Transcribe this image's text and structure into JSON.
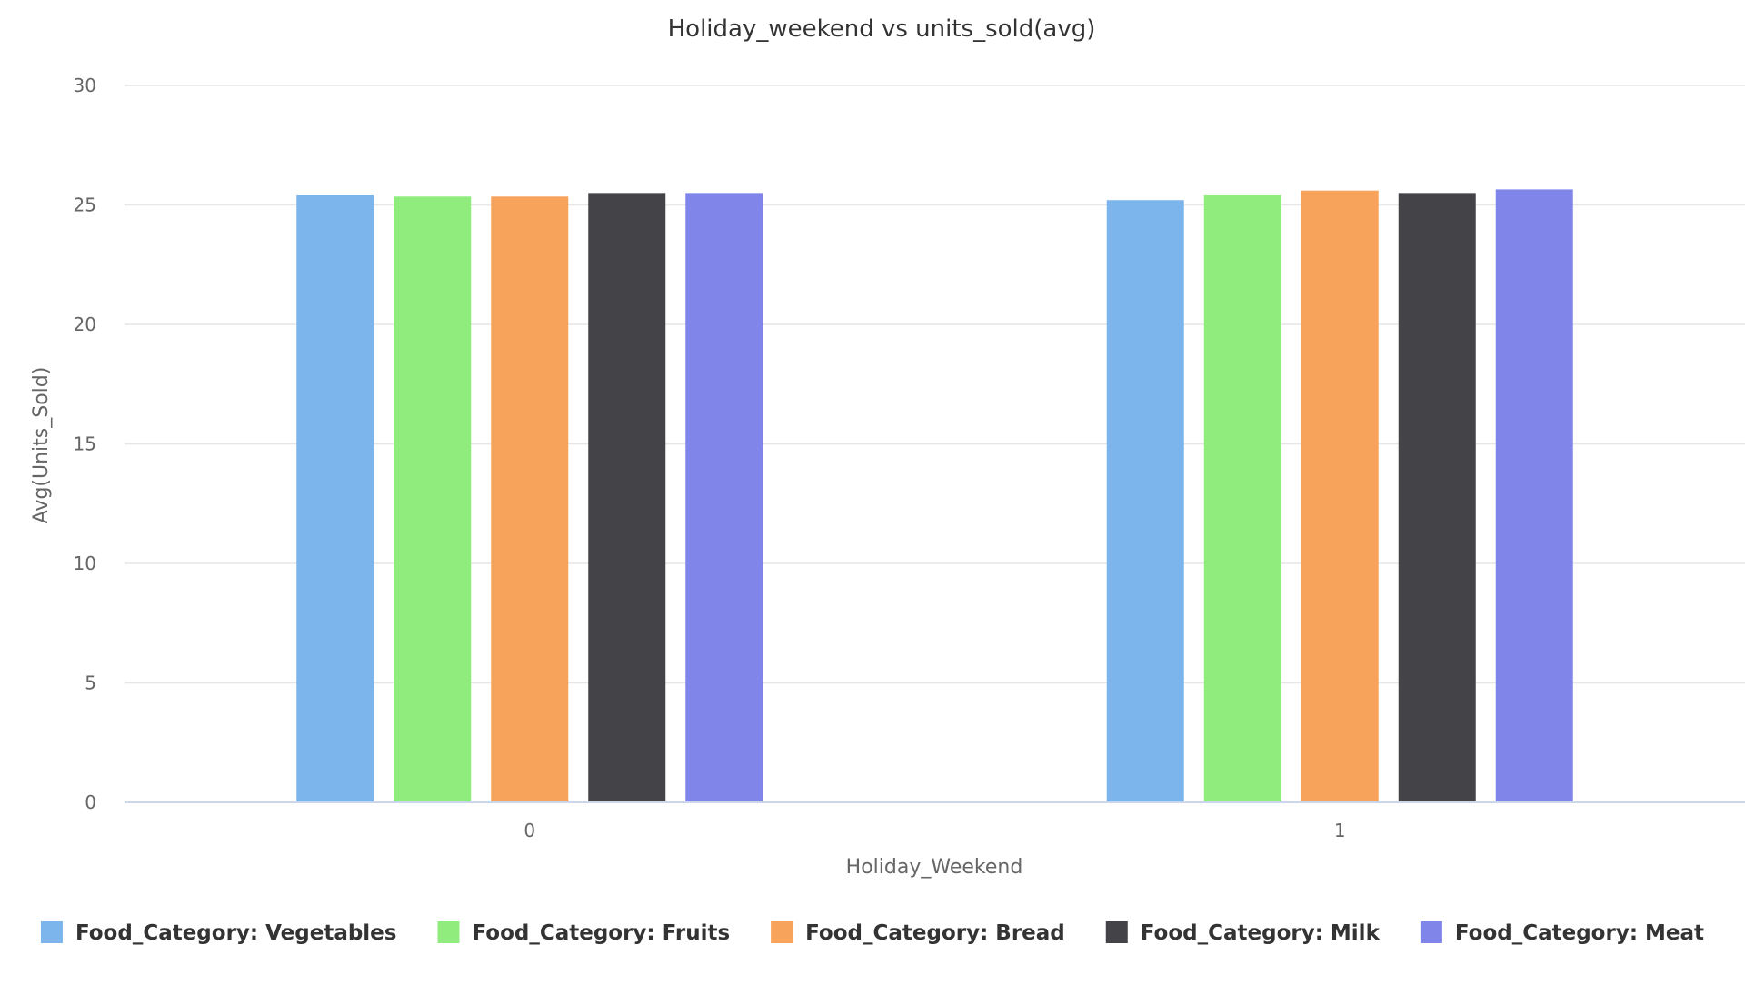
{
  "chart_data": {
    "type": "bar",
    "title": "Holiday_weekend vs units_sold(avg)",
    "xlabel": "Holiday_Weekend",
    "ylabel": "Avg(Units_Sold)",
    "categories": [
      "0",
      "1"
    ],
    "ylim": [
      0,
      30
    ],
    "yticks": [
      0,
      5,
      10,
      15,
      20,
      25,
      30
    ],
    "grid": true,
    "legend_position": "bottom",
    "series": [
      {
        "name": "Food_Category: Vegetables",
        "color": "#7cb5ec",
        "values": [
          25.4,
          25.2
        ]
      },
      {
        "name": "Food_Category: Fruits",
        "color": "#90ed7d",
        "values": [
          25.35,
          25.4
        ]
      },
      {
        "name": "Food_Category: Bread",
        "color": "#f7a35c",
        "values": [
          25.35,
          25.6
        ]
      },
      {
        "name": "Food_Category: Milk",
        "color": "#434348",
        "values": [
          25.5,
          25.5
        ]
      },
      {
        "name": "Food_Category: Meat",
        "color": "#8085e9",
        "values": [
          25.5,
          25.65
        ]
      }
    ]
  }
}
